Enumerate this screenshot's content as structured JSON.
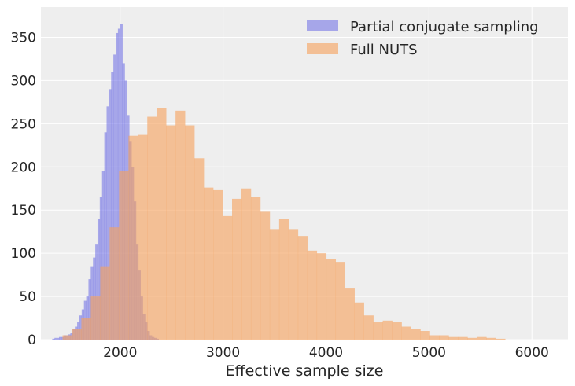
{
  "chart_data": {
    "type": "histogram",
    "title": "",
    "xlabel": "Effective sample size",
    "ylabel": "",
    "xlim": [
      1230,
      6350
    ],
    "ylim": [
      0,
      385
    ],
    "xticks": [
      2000,
      3000,
      4000,
      5000,
      6000
    ],
    "yticks": [
      0,
      50,
      100,
      150,
      200,
      250,
      300,
      350
    ],
    "grid": true,
    "legend_position": "top-right",
    "series": [
      {
        "name": "Partial conjugate sampling",
        "color": "#6c6ce6",
        "opacity": 0.55,
        "bin_start": 1340,
        "bin_width": 22,
        "counts": [
          1,
          2,
          2,
          3,
          3,
          5,
          5,
          6,
          8,
          12,
          15,
          20,
          28,
          35,
          45,
          50,
          70,
          85,
          95,
          110,
          140,
          165,
          195,
          240,
          270,
          290,
          310,
          330,
          355,
          360,
          365,
          320,
          300,
          260,
          230,
          200,
          160,
          110,
          80,
          50,
          30,
          20,
          10,
          5,
          3,
          2,
          1
        ]
      },
      {
        "name": "Full NUTS",
        "color": "#f5a25d",
        "opacity": 0.62,
        "bin_start": 1440,
        "bin_width": 91.5,
        "counts": [
          5,
          12,
          25,
          50,
          85,
          130,
          195,
          236,
          237,
          258,
          268,
          248,
          265,
          248,
          210,
          176,
          173,
          143,
          163,
          175,
          165,
          148,
          128,
          140,
          128,
          120,
          103,
          100,
          93,
          90,
          60,
          43,
          28,
          20,
          22,
          20,
          15,
          12,
          10,
          5,
          5,
          3,
          3,
          2,
          3,
          2,
          1
        ]
      }
    ]
  }
}
